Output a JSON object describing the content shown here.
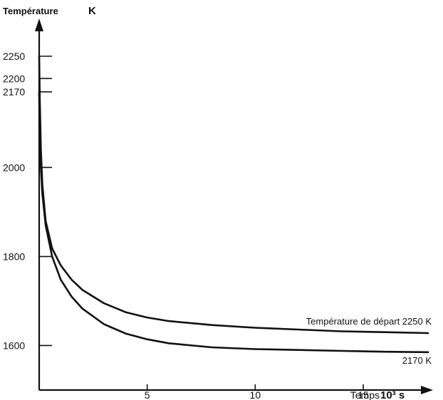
{
  "chart_data": {
    "type": "line",
    "title": "",
    "ylabel": "Température",
    "ylabel_unit": "K",
    "xlabel": "Temps",
    "xlabel_unit": "10³ s",
    "xlim": [
      0,
      18
    ],
    "ylim": [
      1500,
      2350
    ],
    "grid": false,
    "x_ticks": [
      {
        "value": 5,
        "label": "5"
      },
      {
        "value": 10,
        "label": "10"
      },
      {
        "value": 15,
        "label": "15"
      }
    ],
    "y_ticks": [
      {
        "value": 1600,
        "label": "1600"
      },
      {
        "value": 1800,
        "label": "1800"
      },
      {
        "value": 2000,
        "label": "2000"
      },
      {
        "value": 2170,
        "label": "2170"
      },
      {
        "value": 2200,
        "label": "2200"
      },
      {
        "value": 2250,
        "label": "2250"
      }
    ],
    "series": [
      {
        "label": "Température de départ 2250 K",
        "color": "#111111",
        "points": [
          [
            0,
            2250
          ],
          [
            0.03,
            2150
          ],
          [
            0.08,
            2040
          ],
          [
            0.15,
            1960
          ],
          [
            0.3,
            1880
          ],
          [
            0.6,
            1818
          ],
          [
            1,
            1780
          ],
          [
            1.5,
            1748
          ],
          [
            2,
            1725
          ],
          [
            3,
            1695
          ],
          [
            4,
            1675
          ],
          [
            5,
            1663
          ],
          [
            6,
            1655
          ],
          [
            8,
            1646
          ],
          [
            10,
            1640
          ],
          [
            12,
            1636
          ],
          [
            14,
            1632
          ],
          [
            16,
            1630
          ],
          [
            18,
            1628
          ]
        ]
      },
      {
        "label": "2170 K",
        "color": "#111111",
        "points": [
          [
            0,
            2170
          ],
          [
            0.03,
            2080
          ],
          [
            0.08,
            2000
          ],
          [
            0.15,
            1940
          ],
          [
            0.3,
            1870
          ],
          [
            0.6,
            1800
          ],
          [
            1,
            1748
          ],
          [
            1.5,
            1710
          ],
          [
            2,
            1683
          ],
          [
            3,
            1648
          ],
          [
            4,
            1627
          ],
          [
            5,
            1614
          ],
          [
            6,
            1605
          ],
          [
            8,
            1596
          ],
          [
            10,
            1592
          ],
          [
            12,
            1590
          ],
          [
            14,
            1588
          ],
          [
            16,
            1586
          ],
          [
            18,
            1585
          ]
        ]
      }
    ]
  }
}
